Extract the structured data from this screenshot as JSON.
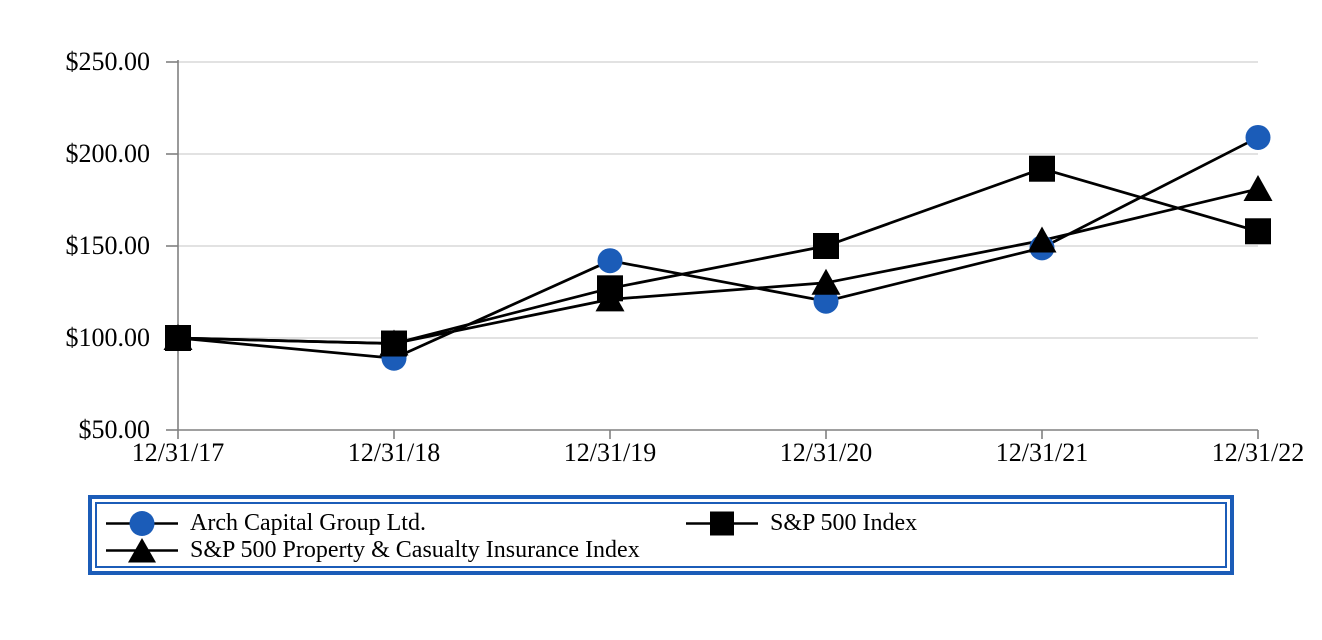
{
  "chart_data": {
    "type": "line",
    "title": "",
    "categories": [
      "12/31/17",
      "12/31/18",
      "12/31/19",
      "12/31/20",
      "12/31/21",
      "12/31/22"
    ],
    "series": [
      {
        "name": "Arch Capital Group Ltd.",
        "marker": "circle",
        "color": "#1b5cb8",
        "values": [
          100.0,
          89.0,
          142.0,
          120.0,
          149.0,
          209.0
        ]
      },
      {
        "name": "S&P 500 Property & Casualty Insurance Index",
        "marker": "triangle",
        "color": "#000000",
        "values": [
          100.0,
          97.0,
          121.0,
          130.0,
          153.0,
          181.0
        ]
      },
      {
        "name": "S&P 500 Index",
        "marker": "square",
        "color": "#000000",
        "values": [
          100.0,
          97.0,
          127.0,
          150.0,
          192.0,
          158.0
        ]
      }
    ],
    "y_tick_labels": [
      "$250.00",
      "$200.00",
      "$150.00",
      "$100.00",
      "$50.00"
    ],
    "y_tick_values": [
      250,
      200,
      150,
      100,
      50
    ],
    "ylim": [
      50,
      250
    ],
    "xlabel": "",
    "ylabel": "",
    "grid": true,
    "legend_position": "bottom-box",
    "accent_color": "#1b5cb8",
    "line_color": "#000000",
    "axis_color": "#808080",
    "gridline_color": "#d9d9d9"
  }
}
